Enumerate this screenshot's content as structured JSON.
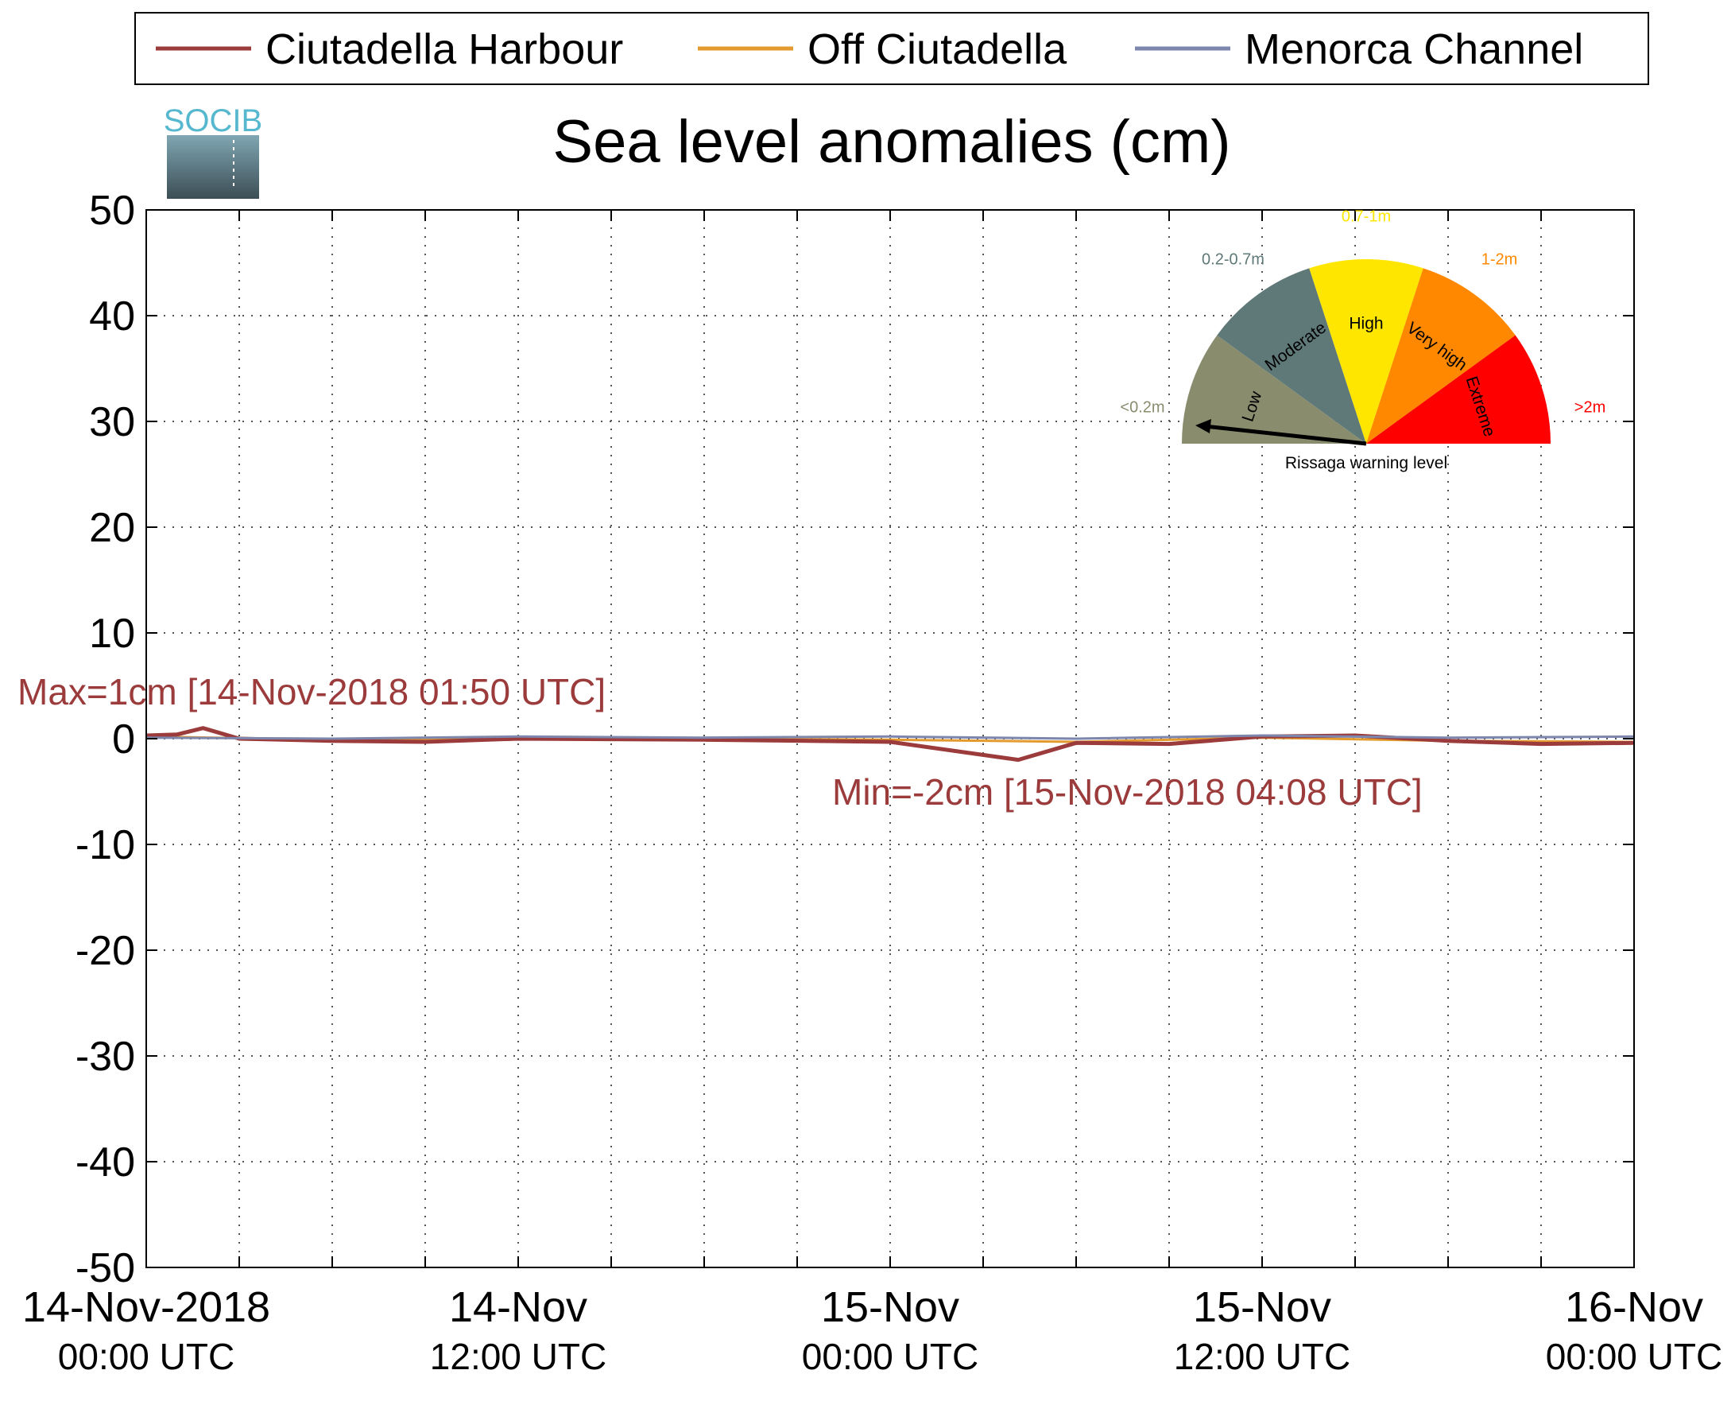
{
  "chart_data": {
    "type": "line",
    "title": "Sea level anomalies (cm)",
    "logo_text": "SOCIB",
    "ylim": [
      -50,
      50
    ],
    "yticks": [
      50,
      40,
      30,
      20,
      10,
      0,
      -10,
      -20,
      -30,
      -40,
      -50
    ],
    "xlim": [
      "2018-11-14 00:00",
      "2018-11-16 00:00"
    ],
    "xtick_labels": [
      {
        "line1": "14-Nov-2018",
        "line2": "00:00 UTC"
      },
      {
        "line1": "14-Nov",
        "line2": "12:00 UTC"
      },
      {
        "line1": "15-Nov",
        "line2": "00:00 UTC"
      },
      {
        "line1": "15-Nov",
        "line2": "12:00 UTC"
      },
      {
        "line1": "16-Nov",
        "line2": "00:00 UTC"
      }
    ],
    "grid": true,
    "legend_position": "top",
    "series": [
      {
        "name": "Ciutadella Harbour",
        "color": "#9b3b3b",
        "points": [
          [
            "2018-11-14 00:00",
            0.3
          ],
          [
            "2018-11-14 01:00",
            0.4
          ],
          [
            "2018-11-14 01:50",
            1.0
          ],
          [
            "2018-11-14 03:00",
            0.0
          ],
          [
            "2018-11-14 06:00",
            -0.2
          ],
          [
            "2018-11-14 09:00",
            -0.3
          ],
          [
            "2018-11-14 12:00",
            0.0
          ],
          [
            "2018-11-14 18:00",
            -0.1
          ],
          [
            "2018-11-15 00:00",
            -0.3
          ],
          [
            "2018-11-15 04:08",
            -2.0
          ],
          [
            "2018-11-15 06:00",
            -0.4
          ],
          [
            "2018-11-15 09:00",
            -0.5
          ],
          [
            "2018-11-15 12:00",
            0.2
          ],
          [
            "2018-11-15 15:00",
            0.3
          ],
          [
            "2018-11-15 18:00",
            -0.2
          ],
          [
            "2018-11-15 21:00",
            -0.5
          ],
          [
            "2018-11-16 00:00",
            -0.4
          ]
        ]
      },
      {
        "name": "Off Ciutadella",
        "color": "#e39a2e",
        "points": [
          [
            "2018-11-14 00:00",
            0.2
          ],
          [
            "2018-11-14 06:00",
            -0.1
          ],
          [
            "2018-11-14 12:00",
            0.1
          ],
          [
            "2018-11-14 18:00",
            0.0
          ],
          [
            "2018-11-15 00:00",
            -0.1
          ],
          [
            "2018-11-15 06:00",
            -0.3
          ],
          [
            "2018-11-15 12:00",
            0.1
          ],
          [
            "2018-11-15 18:00",
            -0.2
          ],
          [
            "2018-11-16 00:00",
            -0.3
          ]
        ]
      },
      {
        "name": "Menorca Channel",
        "color": "#7d86ad",
        "points": [
          [
            "2018-11-14 00:00",
            0.1
          ],
          [
            "2018-11-14 06:00",
            0.0
          ],
          [
            "2018-11-14 12:00",
            0.2
          ],
          [
            "2018-11-14 18:00",
            0.1
          ],
          [
            "2018-11-15 00:00",
            0.2
          ],
          [
            "2018-11-15 06:00",
            0.0
          ],
          [
            "2018-11-15 12:00",
            0.3
          ],
          [
            "2018-11-15 18:00",
            0.1
          ],
          [
            "2018-11-16 00:00",
            0.2
          ]
        ]
      }
    ],
    "annotations": [
      {
        "name": "max",
        "text": "Max=1cm [14-Nov-2018 01:50 UTC]",
        "color": "#9b3b3b"
      },
      {
        "name": "min",
        "text": "Min=-2cm [15-Nov-2018 04:08 UTC]",
        "color": "#9b3b3b"
      }
    ],
    "gauge": {
      "caption": "Rissaga warning level",
      "current_level": "Low",
      "segments": [
        {
          "label": "Low",
          "range": "<0.2m",
          "color": "#8a8c6e"
        },
        {
          "label": "Moderate",
          "range": "0.2-0.7m",
          "color": "#5f7878"
        },
        {
          "label": "High",
          "range": "0.7-1m",
          "color": "#ffe600"
        },
        {
          "label": "Very high",
          "range": "1-2m",
          "color": "#ff8800"
        },
        {
          "label": "Extreme",
          "range": ">2m",
          "color": "#ff0000"
        }
      ]
    }
  }
}
